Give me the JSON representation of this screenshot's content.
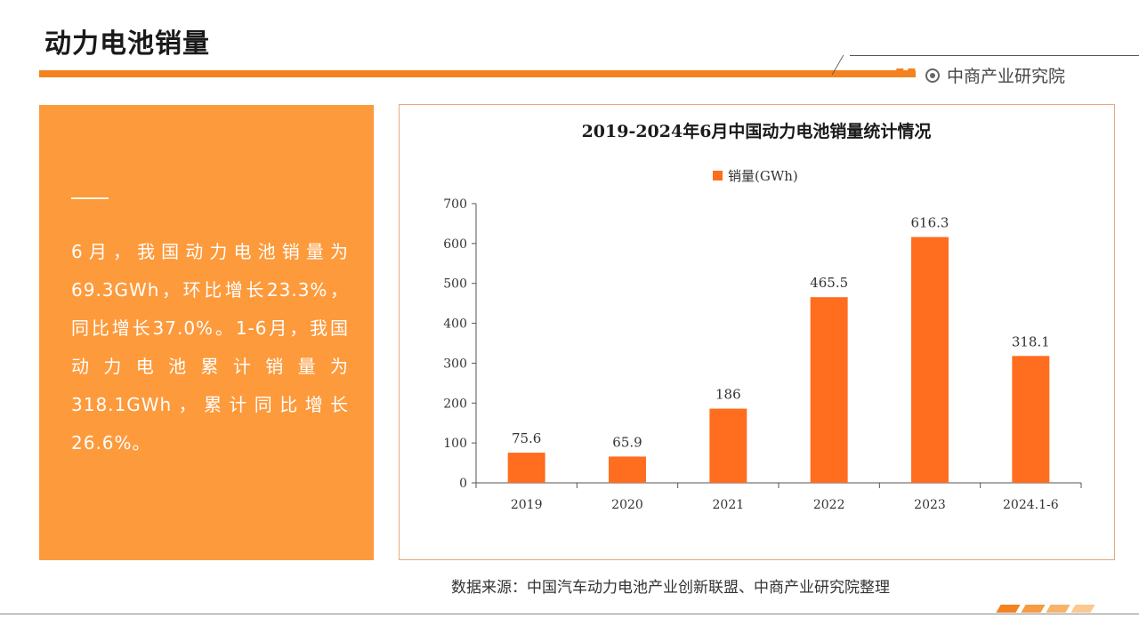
{
  "page": {
    "title": "动力电池销量",
    "brand": "中商产业研究院"
  },
  "summary": {
    "text": "6月，我国动力电池销量为69.3GWh，环比增长23.3%，同比增长37.0%。1-6月，我国动力电池累计销量为318.1GWh，累计同比增长26.6%。"
  },
  "source": "数据来源：中国汽车动力电池产业创新联盟、中商产业研究院整理",
  "colors": {
    "accent": "#f58220",
    "panel": "#fd9a3c",
    "bar": "#ff6d1f"
  },
  "chart_data": {
    "type": "bar",
    "title": "2019-2024年6月中国动力电池销量统计情况",
    "categories": [
      "2019",
      "2020",
      "2021",
      "2022",
      "2023",
      "2024.1-6"
    ],
    "series": [
      {
        "name": "销量(GWh)",
        "values": [
          75.6,
          65.9,
          186,
          465.5,
          616.3,
          318.1
        ]
      }
    ],
    "data_labels": [
      "75.6",
      "65.9",
      "186",
      "465.5",
      "616.3",
      "318.1"
    ],
    "yticks": [
      "0",
      "100",
      "200",
      "300",
      "400",
      "500",
      "600",
      "700"
    ],
    "ylim": [
      0,
      700
    ],
    "xlabel": "",
    "ylabel": "",
    "grid": false,
    "legend": "top"
  }
}
